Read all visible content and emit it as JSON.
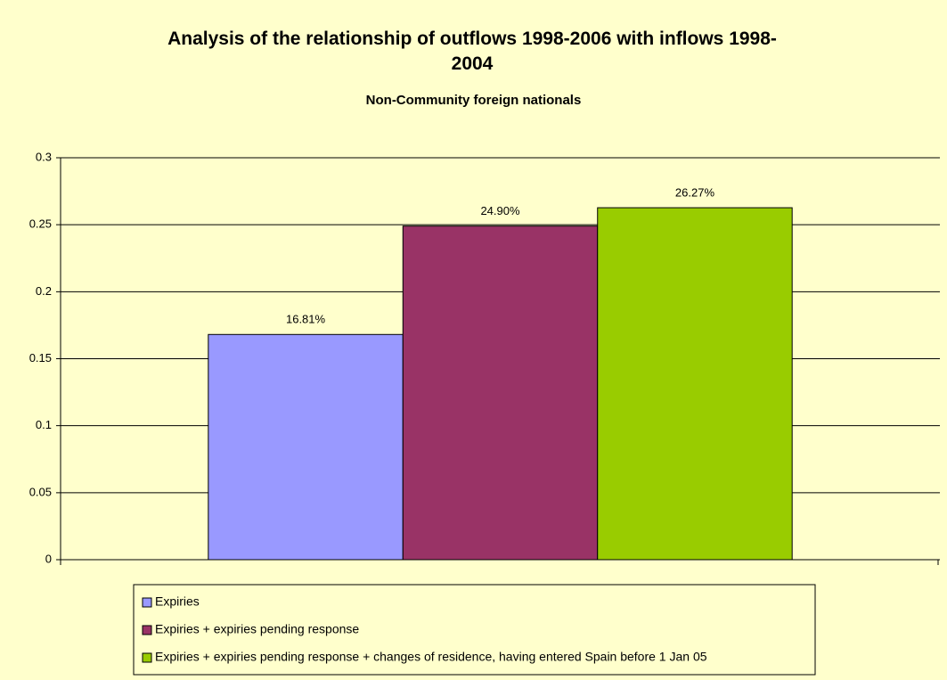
{
  "chart_data": {
    "type": "bar",
    "title": "Analysis of the relationship of outflows 1998-2006 with inflows 1998-2004",
    "subtitle": "Non-Community foreign nationals",
    "categories": [
      null
    ],
    "series": [
      {
        "name": "Expiries",
        "color": "#9999ff",
        "values": [
          0.1681
        ],
        "value_labels": [
          "16.81%"
        ]
      },
      {
        "name": "Expiries + expiries pending response",
        "color": "#993366",
        "values": [
          0.249
        ],
        "value_labels": [
          "24.90%"
        ]
      },
      {
        "name": "Expiries + expiries pending response + changes of residence, having entered Spain before 1 Jan 05",
        "color": "#99cc00",
        "values": [
          0.2627
        ],
        "value_labels": [
          "26.27%"
        ]
      }
    ],
    "ylim": [
      0,
      0.3
    ],
    "yticks": [
      0,
      0.05,
      0.1,
      0.15,
      0.2,
      0.25,
      0.3
    ],
    "grid": true,
    "legend": "bottom"
  }
}
